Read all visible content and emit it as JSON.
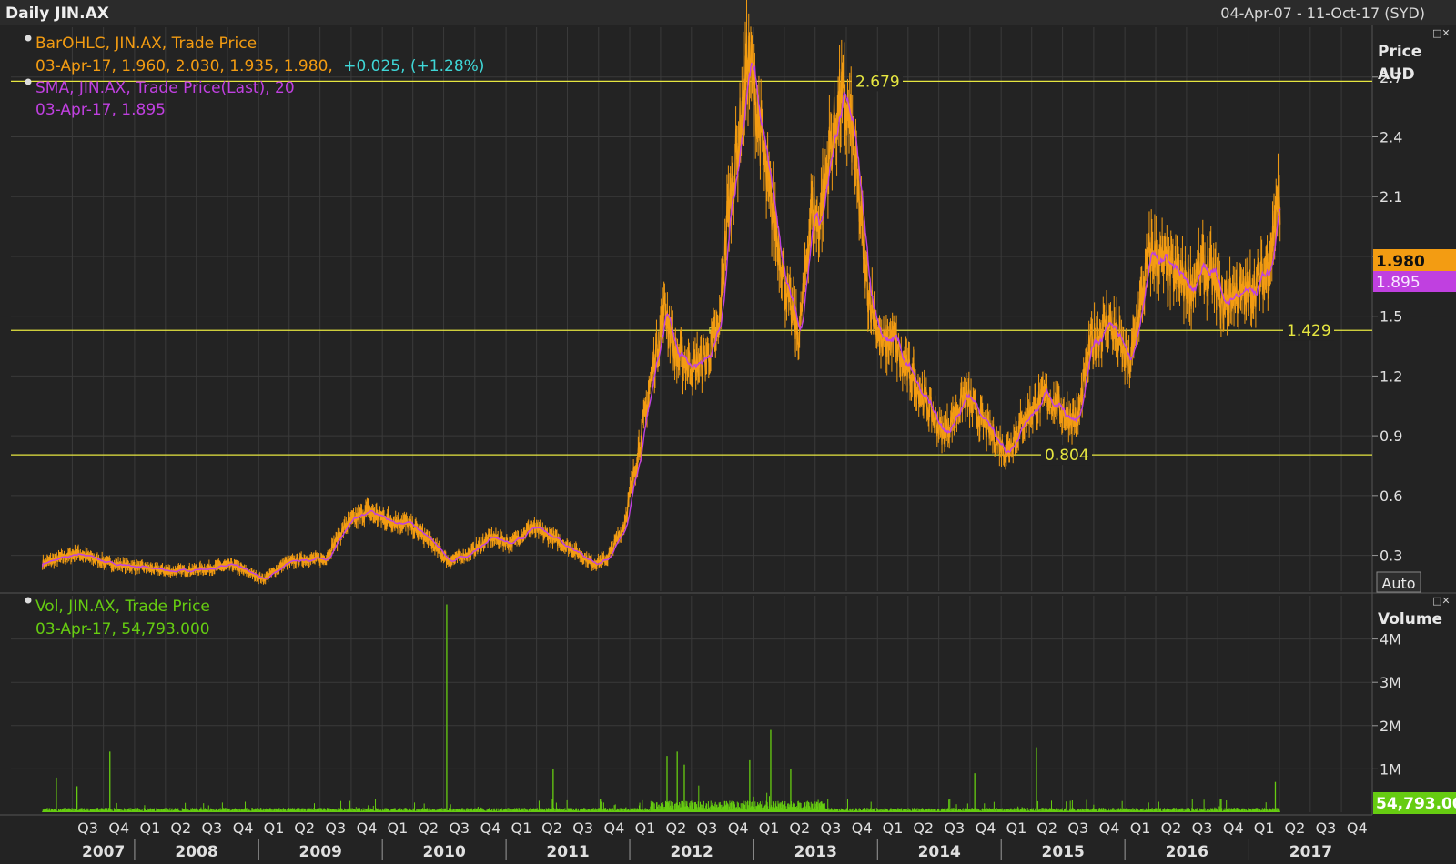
{
  "header": {
    "title": "Daily JIN.AX",
    "date_range": "04-Apr-07 - 11-Oct-17 (SYD)",
    "window_buttons": "□✕"
  },
  "price_panel": {
    "legend_line1": "BarOHLC, JIN.AX, Trade Price",
    "legend_line2_main": "03-Apr-17, 1.960, 2.030, 1.935, 1.980,",
    "legend_line2_change": "+0.025, (+1.28%)",
    "legend_line3": "SMA, JIN.AX, Trade Price(Last),  20",
    "legend_line4": "03-Apr-17, 1.895",
    "axis_title_1": "Price",
    "axis_title_2": "AUD",
    "auto_label": "Auto",
    "last_price_tag": "1.980",
    "sma_tag": "1.895",
    "line_labels": [
      "2.679",
      "1.429",
      "0.804"
    ]
  },
  "volume_panel": {
    "legend_line1": "Vol, JIN.AX, Trade Price",
    "legend_line2": "03-Apr-17, 54,793.000",
    "axis_title": "Volume",
    "last_volume_tag": "54,793.00"
  },
  "colors": {
    "background": "#232323",
    "grid": "#3a3a3a",
    "price": "#f39c12",
    "sma": "#c040e0",
    "volume": "#66cc11",
    "hline": "#e6e640",
    "axis_text": "#e0e0e0",
    "change": "#3fd6d6"
  },
  "chart_data": [
    {
      "type": "line",
      "title": "Daily JIN.AX",
      "ylabel": "Price AUD",
      "ylim": [
        0.12,
        2.95
      ],
      "yticks": [
        0.3,
        0.6,
        0.9,
        1.2,
        1.5,
        1.8,
        2.1,
        2.4,
        2.7
      ],
      "ytick_labels": [
        "0.3",
        "0.6",
        "0.9",
        "1.2",
        "1.5",
        "1.8",
        "2.1",
        "2.4",
        "2.7"
      ],
      "x_range": [
        "2007-04-04",
        "2017-10-11"
      ],
      "quarter_labels": [
        "Q3",
        "Q4",
        "Q1",
        "Q2",
        "Q3",
        "Q4",
        "Q1",
        "Q2",
        "Q3",
        "Q4",
        "Q1",
        "Q2",
        "Q3",
        "Q4",
        "Q1",
        "Q2",
        "Q3",
        "Q4",
        "Q1",
        "Q2",
        "Q3",
        "Q4",
        "Q1",
        "Q2",
        "Q3",
        "Q4",
        "Q1",
        "Q2",
        "Q3",
        "Q4",
        "Q1",
        "Q2",
        "Q3",
        "Q4",
        "Q1",
        "Q2",
        "Q3",
        "Q4",
        "Q1",
        "Q2",
        "Q3",
        "Q4"
      ],
      "year_labels": [
        "2007",
        "2008",
        "2009",
        "2010",
        "2011",
        "2012",
        "2013",
        "2014",
        "2015",
        "2016",
        "2017"
      ],
      "grid": true,
      "series": [
        {
          "name": "BarOHLC, JIN.AX, Trade Price",
          "x": [
            "2007-04-04",
            "2007-07-15",
            "2007-10-15",
            "2008-01-15",
            "2008-04-15",
            "2008-07-15",
            "2008-10-15",
            "2009-01-15",
            "2009-03-20",
            "2009-05-15",
            "2009-07-15",
            "2009-09-15",
            "2009-11-15",
            "2010-01-15",
            "2010-03-15",
            "2010-05-15",
            "2010-07-15",
            "2010-09-15",
            "2010-11-15",
            "2011-01-15",
            "2011-03-15",
            "2011-05-15",
            "2011-07-15",
            "2011-09-15",
            "2011-10-25",
            "2011-12-15",
            "2012-02-15",
            "2012-03-15",
            "2012-04-15",
            "2012-05-15",
            "2012-07-15",
            "2012-08-15",
            "2012-09-20",
            "2012-10-15",
            "2012-11-15",
            "2012-12-15",
            "2013-01-10",
            "2013-02-10",
            "2013-03-01",
            "2013-04-15",
            "2013-05-15",
            "2013-06-20",
            "2013-07-10",
            "2013-08-15",
            "2013-09-15",
            "2013-10-15",
            "2013-11-15",
            "2013-12-01",
            "2014-01-15",
            "2014-02-15",
            "2014-03-15",
            "2014-04-15",
            "2014-05-15",
            "2014-07-15",
            "2014-09-15",
            "2014-11-15",
            "2015-01-15",
            "2015-03-15",
            "2015-05-15",
            "2015-07-15",
            "2015-08-15",
            "2015-09-20",
            "2015-11-15",
            "2016-01-15",
            "2016-03-15",
            "2016-05-15",
            "2016-07-15",
            "2016-08-15",
            "2016-09-15",
            "2016-10-15",
            "2016-11-15",
            "2016-12-15",
            "2017-01-15",
            "2017-02-15",
            "2017-03-10",
            "2017-03-25",
            "2017-04-03"
          ],
          "values": [
            0.26,
            0.31,
            0.26,
            0.24,
            0.22,
            0.23,
            0.25,
            0.18,
            0.26,
            0.28,
            0.28,
            0.45,
            0.52,
            0.48,
            0.46,
            0.38,
            0.27,
            0.31,
            0.39,
            0.36,
            0.44,
            0.39,
            0.33,
            0.26,
            0.28,
            0.45,
            1.0,
            1.3,
            1.55,
            1.3,
            1.25,
            1.3,
            1.42,
            2.0,
            2.35,
            2.8,
            2.55,
            2.15,
            2.0,
            1.55,
            1.4,
            2.05,
            1.95,
            2.35,
            2.6,
            2.45,
            1.95,
            1.65,
            1.35,
            1.4,
            1.25,
            1.2,
            1.1,
            0.9,
            1.1,
            0.95,
            0.82,
            1.0,
            1.1,
            1.0,
            0.98,
            1.35,
            1.48,
            1.25,
            1.82,
            1.72,
            1.65,
            1.73,
            1.7,
            1.55,
            1.62,
            1.6,
            1.65,
            1.7,
            1.85,
            2.1,
            1.98
          ]
        },
        {
          "name": "SMA, JIN.AX, Trade Price(Last),  20",
          "note_type": "moving_average",
          "window": 20,
          "last_value": 1.895
        }
      ],
      "hlines": [
        2.679,
        1.429,
        0.804
      ]
    },
    {
      "type": "bar",
      "title": "Vol, JIN.AX, Trade Price",
      "ylabel": "Volume",
      "ylim": [
        0,
        5000000
      ],
      "yticks": [
        1000000,
        2000000,
        3000000,
        4000000
      ],
      "ytick_labels": [
        "1M",
        "2M",
        "3M",
        "4M"
      ],
      "baseline_volume": 60000,
      "spikes": [
        {
          "x": "2007-05-15",
          "value": 800000
        },
        {
          "x": "2007-07-15",
          "value": 600000
        },
        {
          "x": "2007-10-20",
          "value": 1400000
        },
        {
          "x": "2010-07-10",
          "value": 4800000
        },
        {
          "x": "2011-05-20",
          "value": 1000000
        },
        {
          "x": "2012-04-20",
          "value": 1300000
        },
        {
          "x": "2012-05-20",
          "value": 1400000
        },
        {
          "x": "2012-06-10",
          "value": 1100000
        },
        {
          "x": "2012-12-20",
          "value": 1200000
        },
        {
          "x": "2013-02-20",
          "value": 1900000
        },
        {
          "x": "2013-04-20",
          "value": 1000000
        },
        {
          "x": "2014-10-15",
          "value": 900000
        },
        {
          "x": "2015-04-15",
          "value": 1500000
        },
        {
          "x": "2017-03-20",
          "value": 700000
        }
      ],
      "last_value": 54793
    }
  ]
}
